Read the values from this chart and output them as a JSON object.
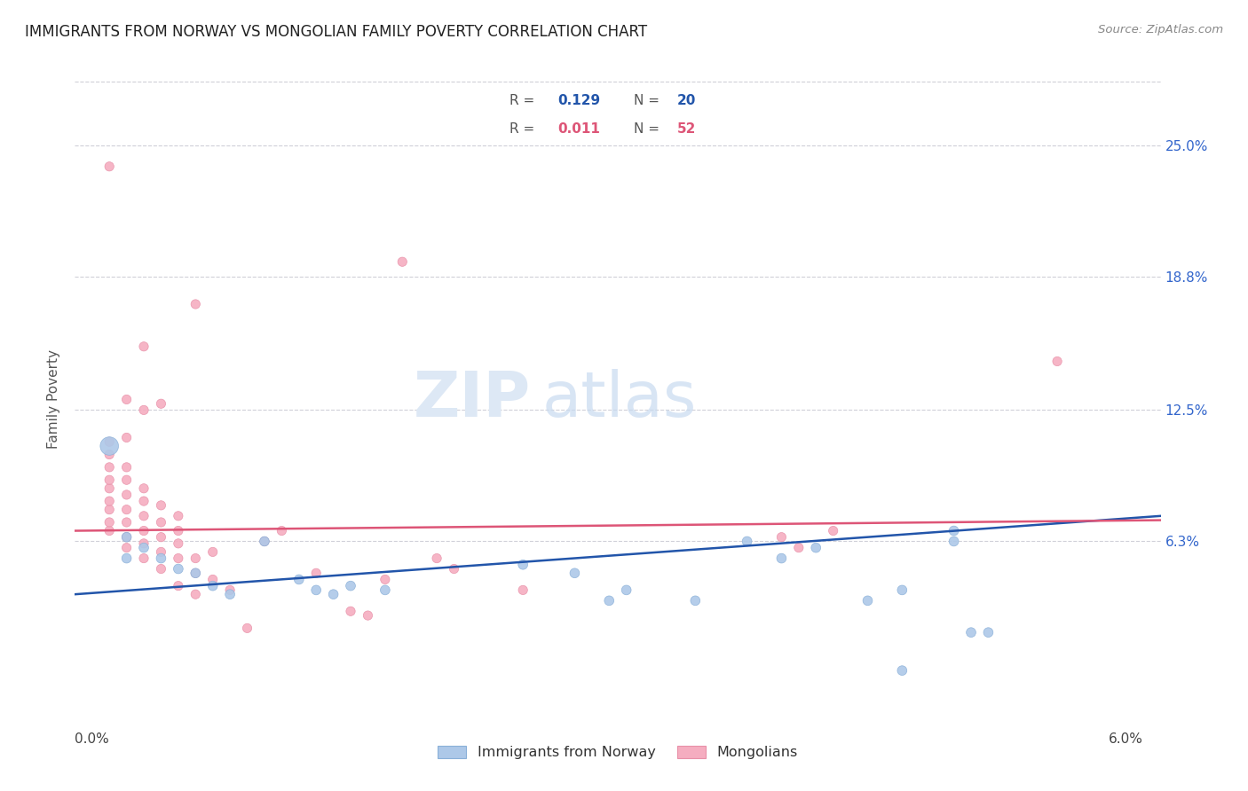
{
  "title": "IMMIGRANTS FROM NORWAY VS MONGOLIAN FAMILY POVERTY CORRELATION CHART",
  "source": "Source: ZipAtlas.com",
  "ylabel": "Family Poverty",
  "ytick_labels": [
    "6.3%",
    "12.5%",
    "18.8%",
    "25.0%"
  ],
  "ytick_values": [
    0.063,
    0.125,
    0.188,
    0.25
  ],
  "xlim": [
    -0.001,
    0.062
  ],
  "ylim": [
    -0.025,
    0.285
  ],
  "norway_color": "#adc8e8",
  "norway_edge_color": "#8ab0d8",
  "mongolian_color": "#f5adc0",
  "mongolian_edge_color": "#e890a8",
  "norway_line_color": "#2255aa",
  "mongolian_line_color": "#dd5577",
  "watermark_zip": "ZIP",
  "watermark_atlas": "atlas",
  "norway_line_y0": 0.038,
  "norway_line_y1": 0.075,
  "mongolian_line_y0": 0.068,
  "mongolian_line_y1": 0.073,
  "norway_points": [
    [
      0.001,
      0.108
    ],
    [
      0.002,
      0.065
    ],
    [
      0.002,
      0.055
    ],
    [
      0.003,
      0.06
    ],
    [
      0.004,
      0.055
    ],
    [
      0.005,
      0.05
    ],
    [
      0.006,
      0.048
    ],
    [
      0.007,
      0.042
    ],
    [
      0.008,
      0.038
    ],
    [
      0.01,
      0.063
    ],
    [
      0.012,
      0.045
    ],
    [
      0.013,
      0.04
    ],
    [
      0.014,
      0.038
    ],
    [
      0.015,
      0.042
    ],
    [
      0.017,
      0.04
    ],
    [
      0.025,
      0.052
    ],
    [
      0.028,
      0.048
    ],
    [
      0.03,
      0.035
    ],
    [
      0.031,
      0.04
    ],
    [
      0.035,
      0.035
    ],
    [
      0.038,
      0.063
    ],
    [
      0.04,
      0.055
    ],
    [
      0.042,
      0.06
    ],
    [
      0.045,
      0.035
    ],
    [
      0.047,
      0.04
    ],
    [
      0.05,
      0.063
    ],
    [
      0.051,
      0.02
    ],
    [
      0.052,
      0.02
    ],
    [
      0.05,
      0.068
    ],
    [
      0.047,
      0.002
    ]
  ],
  "norway_sizes": [
    220,
    60,
    60,
    60,
    60,
    60,
    60,
    60,
    60,
    60,
    60,
    60,
    60,
    60,
    60,
    60,
    60,
    60,
    60,
    60,
    60,
    60,
    60,
    60,
    60,
    60,
    60,
    60,
    60,
    60
  ],
  "mongolian_points": [
    [
      0.001,
      0.068
    ],
    [
      0.001,
      0.072
    ],
    [
      0.001,
      0.078
    ],
    [
      0.001,
      0.082
    ],
    [
      0.001,
      0.088
    ],
    [
      0.001,
      0.092
    ],
    [
      0.001,
      0.098
    ],
    [
      0.001,
      0.104
    ],
    [
      0.001,
      0.11
    ],
    [
      0.002,
      0.06
    ],
    [
      0.002,
      0.065
    ],
    [
      0.002,
      0.072
    ],
    [
      0.002,
      0.078
    ],
    [
      0.002,
      0.085
    ],
    [
      0.002,
      0.092
    ],
    [
      0.002,
      0.098
    ],
    [
      0.003,
      0.055
    ],
    [
      0.003,
      0.062
    ],
    [
      0.003,
      0.068
    ],
    [
      0.003,
      0.075
    ],
    [
      0.003,
      0.082
    ],
    [
      0.003,
      0.088
    ],
    [
      0.004,
      0.05
    ],
    [
      0.004,
      0.058
    ],
    [
      0.004,
      0.065
    ],
    [
      0.004,
      0.072
    ],
    [
      0.004,
      0.08
    ],
    [
      0.005,
      0.042
    ],
    [
      0.005,
      0.055
    ],
    [
      0.005,
      0.062
    ],
    [
      0.005,
      0.068
    ],
    [
      0.006,
      0.038
    ],
    [
      0.006,
      0.048
    ],
    [
      0.006,
      0.055
    ],
    [
      0.006,
      0.175
    ],
    [
      0.007,
      0.045
    ],
    [
      0.007,
      0.058
    ],
    [
      0.008,
      0.04
    ],
    [
      0.009,
      0.022
    ],
    [
      0.01,
      0.063
    ],
    [
      0.011,
      0.068
    ],
    [
      0.013,
      0.048
    ],
    [
      0.015,
      0.03
    ],
    [
      0.016,
      0.028
    ],
    [
      0.017,
      0.045
    ],
    [
      0.02,
      0.055
    ],
    [
      0.021,
      0.05
    ],
    [
      0.025,
      0.04
    ],
    [
      0.001,
      0.24
    ],
    [
      0.003,
      0.155
    ],
    [
      0.018,
      0.195
    ],
    [
      0.04,
      0.065
    ],
    [
      0.041,
      0.06
    ],
    [
      0.043,
      0.068
    ],
    [
      0.056,
      0.148
    ],
    [
      0.002,
      0.13
    ],
    [
      0.003,
      0.125
    ],
    [
      0.004,
      0.128
    ],
    [
      0.005,
      0.075
    ],
    [
      0.002,
      0.112
    ]
  ],
  "mongolian_sizes": [
    55,
    55,
    55,
    55,
    55,
    55,
    55,
    55,
    55,
    55,
    55,
    55,
    55,
    55,
    55,
    55,
    55,
    55,
    55,
    55,
    55,
    55,
    55,
    55,
    55,
    55,
    55,
    55,
    55,
    55,
    55,
    55,
    55,
    55,
    55,
    55,
    55,
    55,
    55,
    55,
    55,
    55,
    55,
    55,
    55,
    55,
    55,
    55,
    55,
    55,
    55,
    55,
    55,
    55,
    55,
    55,
    55,
    55,
    55,
    55
  ]
}
